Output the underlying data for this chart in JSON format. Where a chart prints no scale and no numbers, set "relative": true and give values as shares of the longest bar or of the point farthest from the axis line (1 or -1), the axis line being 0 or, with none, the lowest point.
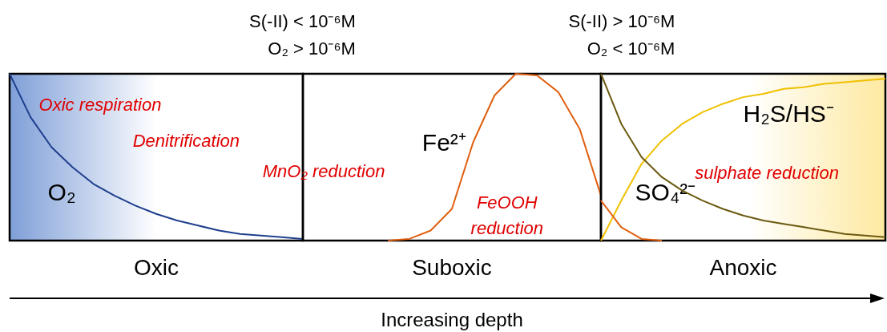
{
  "chart_data": [
    {
      "type": "line",
      "relative": true,
      "title": "Oxic",
      "marker": "none",
      "line_style": "solid",
      "categories": [
        null,
        null,
        null,
        null,
        null,
        null,
        null,
        null,
        null,
        null,
        null,
        null,
        null,
        null,
        null
      ],
      "series": [
        {
          "name": "O₂",
          "color": "#1f3f8f",
          "values": [
            1.0,
            0.74,
            0.56,
            0.44,
            0.34,
            0.27,
            0.21,
            0.16,
            0.12,
            0.09,
            0.06,
            0.04,
            0.03,
            0.02,
            0.01
          ]
        }
      ],
      "annotations": [
        "Oxic respiration",
        "Denitrification",
        "S(-II) < 10⁻⁶M\nO₂ > 10⁻⁶M"
      ]
    },
    {
      "type": "line",
      "relative": true,
      "title": "Suboxic",
      "xlabel": "Increasing depth",
      "marker": "none",
      "line_style": "solid",
      "categories": [
        null,
        null,
        null,
        null,
        null,
        null,
        null,
        null,
        null,
        null,
        null,
        null,
        null,
        null,
        null
      ],
      "series": [
        {
          "name": "Fe²⁺",
          "color": "#e06010",
          "values": [
            null,
            null,
            null,
            null,
            0,
            0.01,
            0.06,
            0.19,
            0.59,
            0.87,
            1.0,
            0.99,
            0.89,
            0.67,
            0.27
          ]
        }
      ],
      "annotations": [
        "MnO₂ reduction",
        "FeOOH\nreduction"
      ]
    },
    {
      "type": "line",
      "relative": true,
      "title": "Anoxic",
      "marker": "none",
      "line_style": "solid",
      "categories": [
        null,
        null,
        null,
        null,
        null,
        null,
        null,
        null,
        null,
        null,
        null,
        null,
        null,
        null,
        null
      ],
      "series": [
        {
          "color": "#e06010",
          "values": [
            0.24,
            0.08,
            0.01,
            0,
            null,
            null,
            null,
            null,
            null,
            null,
            null,
            null,
            null,
            null,
            null
          ]
        },
        {
          "name": "SO₄²⁻",
          "color": "#6b5a10",
          "values": [
            1.0,
            0.7,
            0.5,
            0.38,
            0.3,
            0.24,
            0.19,
            0.15,
            0.12,
            0.1,
            0.08,
            0.06,
            0.04,
            0.03,
            0.02
          ]
        },
        {
          "name": "H₂S/HS⁻",
          "color": "#f0c000",
          "values": [
            0,
            0.24,
            0.46,
            0.6,
            0.7,
            0.77,
            0.82,
            0.86,
            0.88,
            0.91,
            0.92,
            0.94,
            0.95,
            0.96,
            0.97
          ]
        }
      ],
      "annotations": [
        "S(-II) > 10⁻⁶M\nO₂ < 10⁻⁶M",
        "sulphate reduction"
      ]
    }
  ]
}
